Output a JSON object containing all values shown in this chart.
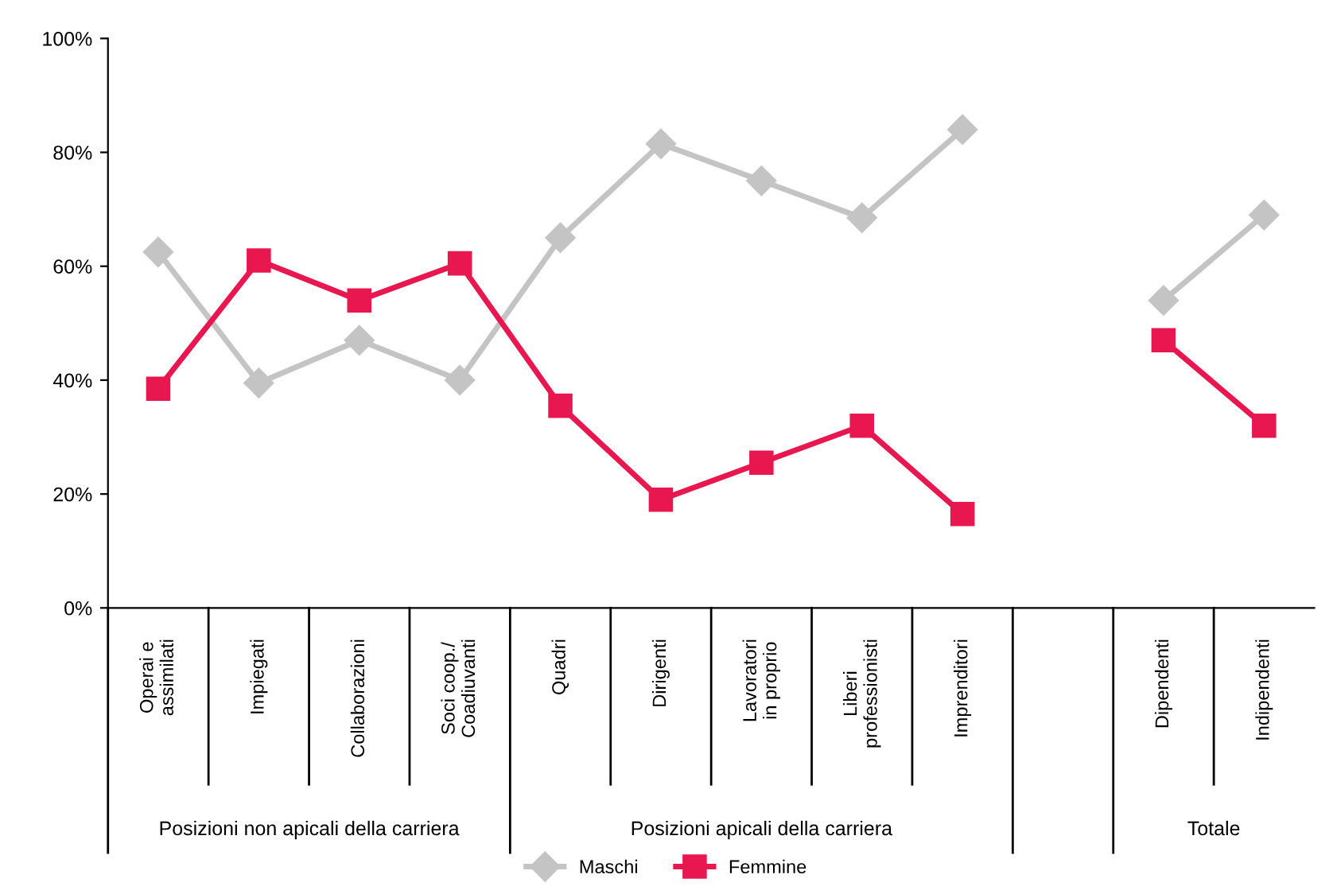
{
  "chart_data": {
    "type": "line",
    "categories": [
      "Operai e\nassimilati",
      "Impiegati",
      "Collaborazioni",
      "Soci coop./\nCoadiuvanti",
      "Quadri",
      "Dirigenti",
      "Lavoratori\nin proprio",
      "Liberi\nprofessionisti",
      "Imprenditori",
      null,
      "Dipendenti",
      "Indipendenti"
    ],
    "series": [
      {
        "name": "Maschi",
        "color": "#c4c4c4",
        "marker": "diamond",
        "values": [
          62.5,
          39.5,
          47,
          40,
          65,
          81.5,
          75,
          68.5,
          84,
          null,
          54,
          69
        ]
      },
      {
        "name": "Femmine",
        "color": "#e8174f",
        "marker": "square",
        "values": [
          38.5,
          61,
          54,
          60.5,
          35.5,
          19,
          25.5,
          32,
          16.5,
          null,
          47,
          32
        ]
      }
    ],
    "ylim": [
      0,
      100
    ],
    "yticks": [
      {
        "value": 0,
        "label": "0%"
      },
      {
        "value": 20,
        "label": "20%"
      },
      {
        "value": 40,
        "label": "40%"
      },
      {
        "value": 60,
        "label": "60%"
      },
      {
        "value": 80,
        "label": "80%"
      },
      {
        "value": 100,
        "label": "100%"
      }
    ],
    "annotations": [
      "Posizioni non apicali della carriera",
      "Posizioni apicali della carriera",
      "Totale"
    ],
    "grid": false,
    "legend": "bottom",
    "line_style": "solid"
  }
}
